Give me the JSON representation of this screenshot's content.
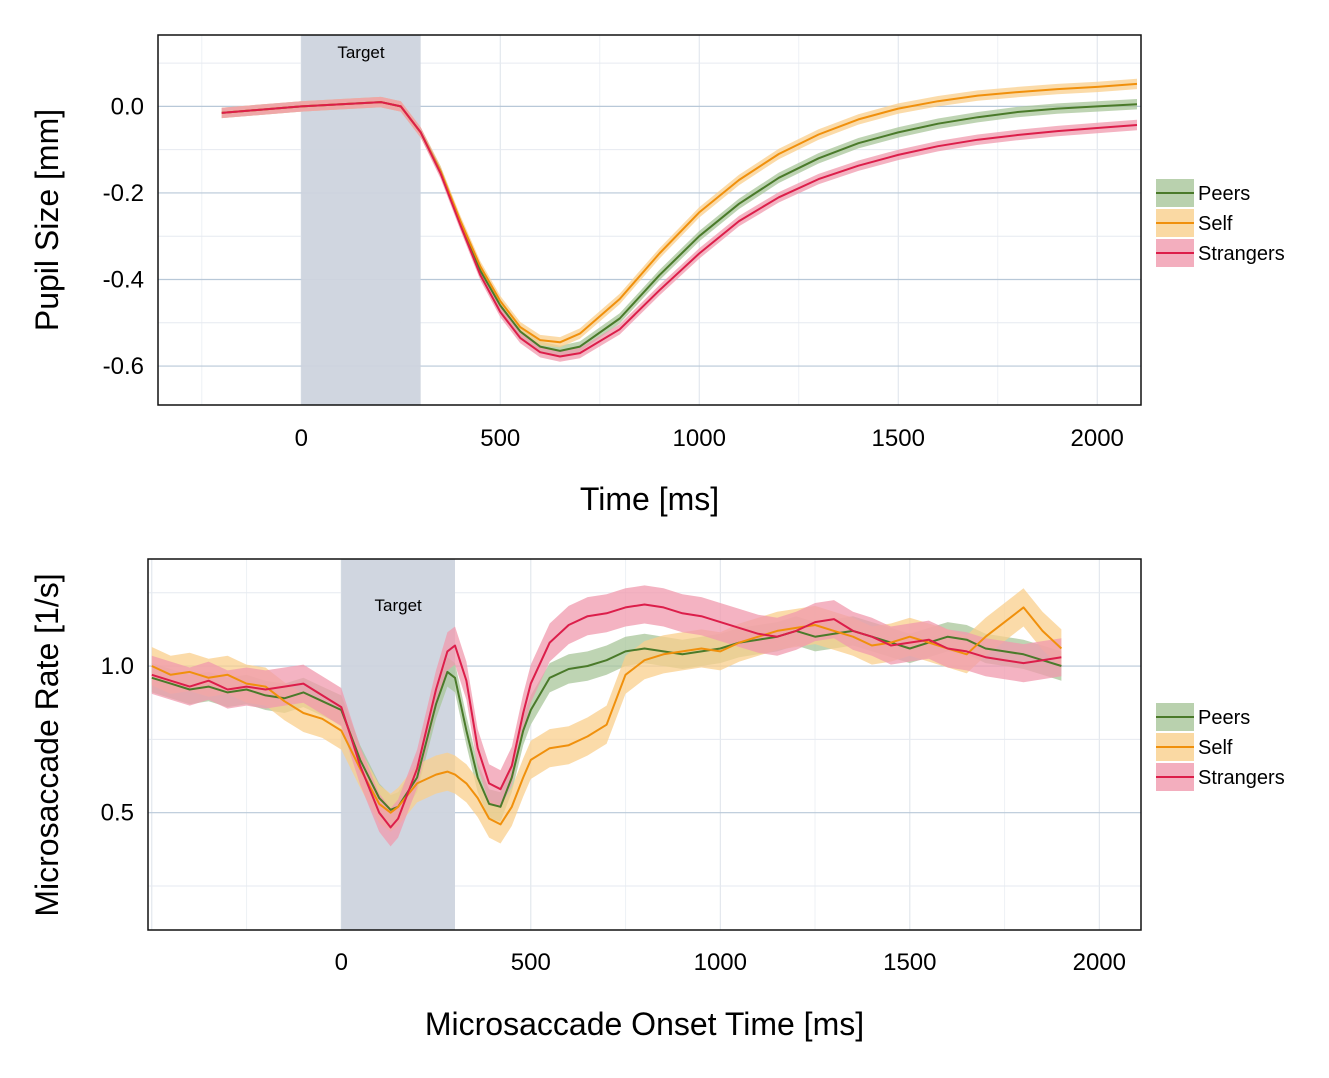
{
  "chart_data": [
    {
      "type": "line",
      "id": "pupil",
      "title": "",
      "xlabel": "Time [ms]",
      "ylabel": "Pupil Size [mm]",
      "xlim": [
        -360,
        2110
      ],
      "ylim": [
        -0.69,
        0.165
      ],
      "xticks": [
        0,
        500,
        1000,
        1500,
        2000
      ],
      "yticks": [
        0.0,
        -0.2,
        -0.4,
        -0.6
      ],
      "ytick_labels": [
        "0.0",
        "-0.2",
        "-0.4",
        "-0.6"
      ],
      "grid": true,
      "legend_position": "right",
      "annotation": {
        "label": "Target",
        "x_start": 0,
        "x_end": 300,
        "color": "#cdd4de"
      },
      "series": [
        {
          "name": "Peers",
          "color": "#4a7a2a",
          "band_color": "#a8c59a",
          "x": [
            -200,
            0,
            100,
            200,
            250,
            300,
            350,
            400,
            450,
            500,
            550,
            600,
            650,
            700,
            800,
            900,
            1000,
            1100,
            1200,
            1300,
            1400,
            1500,
            1600,
            1700,
            1800,
            1900,
            2000,
            2100
          ],
          "y": [
            -0.015,
            0.0,
            0.005,
            0.01,
            0.0,
            -0.06,
            -0.15,
            -0.27,
            -0.38,
            -0.46,
            -0.52,
            -0.555,
            -0.565,
            -0.555,
            -0.49,
            -0.39,
            -0.3,
            -0.225,
            -0.165,
            -0.12,
            -0.085,
            -0.06,
            -0.04,
            -0.025,
            -0.013,
            -0.005,
            0.0,
            0.005
          ],
          "ci": 0.012
        },
        {
          "name": "Self",
          "color": "#f0900c",
          "band_color": "#f9cf8c",
          "x": [
            -200,
            0,
            100,
            200,
            250,
            300,
            350,
            400,
            450,
            500,
            550,
            600,
            650,
            700,
            800,
            900,
            1000,
            1100,
            1200,
            1300,
            1400,
            1500,
            1600,
            1700,
            1800,
            1900,
            2000,
            2100
          ],
          "y": [
            -0.015,
            0.0,
            0.005,
            0.01,
            0.0,
            -0.06,
            -0.15,
            -0.265,
            -0.37,
            -0.45,
            -0.51,
            -0.54,
            -0.545,
            -0.525,
            -0.445,
            -0.34,
            -0.245,
            -0.17,
            -0.11,
            -0.065,
            -0.03,
            -0.005,
            0.012,
            0.025,
            0.033,
            0.04,
            0.045,
            0.052
          ],
          "ci": 0.012
        },
        {
          "name": "Strangers",
          "color": "#dc1e4a",
          "band_color": "#f09aae",
          "x": [
            -200,
            0,
            100,
            200,
            250,
            300,
            350,
            400,
            450,
            500,
            550,
            600,
            650,
            700,
            800,
            900,
            1000,
            1100,
            1200,
            1300,
            1400,
            1500,
            1600,
            1700,
            1800,
            1900,
            2000,
            2100
          ],
          "y": [
            -0.015,
            0.0,
            0.005,
            0.01,
            0.0,
            -0.06,
            -0.155,
            -0.275,
            -0.39,
            -0.475,
            -0.535,
            -0.568,
            -0.578,
            -0.57,
            -0.515,
            -0.425,
            -0.34,
            -0.265,
            -0.21,
            -0.168,
            -0.137,
            -0.112,
            -0.092,
            -0.077,
            -0.066,
            -0.057,
            -0.05,
            -0.043
          ],
          "ci": 0.012
        }
      ]
    },
    {
      "type": "line",
      "id": "microsaccade",
      "title": "",
      "xlabel": "Microsaccade Onset Time [ms]",
      "ylabel": "Microsaccade Rate [1/s]",
      "xlim": [
        -510,
        2110
      ],
      "ylim": [
        0.1,
        1.365
      ],
      "xticks": [
        0,
        500,
        1000,
        1500,
        2000
      ],
      "yticks": [
        0.5,
        1.0
      ],
      "ytick_labels": [
        "0.5",
        "1.0"
      ],
      "grid": true,
      "legend_position": "right",
      "annotation": {
        "label": "Target",
        "x_start": 0,
        "x_end": 300,
        "color": "#cdd4de"
      },
      "series": [
        {
          "name": "Peers",
          "color": "#4a7a2a",
          "band_color": "#a8c59a",
          "x": [
            -500,
            -450,
            -400,
            -350,
            -300,
            -250,
            -200,
            -150,
            -100,
            -50,
            0,
            50,
            100,
            130,
            150,
            200,
            250,
            280,
            300,
            330,
            360,
            390,
            420,
            450,
            480,
            500,
            550,
            600,
            650,
            700,
            750,
            800,
            850,
            900,
            950,
            1000,
            1050,
            1100,
            1150,
            1200,
            1250,
            1300,
            1350,
            1400,
            1450,
            1500,
            1550,
            1600,
            1650,
            1700,
            1750,
            1800,
            1850,
            1900
          ],
          "y": [
            0.96,
            0.94,
            0.92,
            0.93,
            0.91,
            0.92,
            0.9,
            0.89,
            0.91,
            0.88,
            0.85,
            0.68,
            0.55,
            0.51,
            0.52,
            0.62,
            0.87,
            0.98,
            0.96,
            0.78,
            0.62,
            0.53,
            0.52,
            0.62,
            0.78,
            0.85,
            0.96,
            0.99,
            1.0,
            1.02,
            1.05,
            1.06,
            1.05,
            1.04,
            1.05,
            1.06,
            1.08,
            1.09,
            1.1,
            1.12,
            1.1,
            1.11,
            1.12,
            1.1,
            1.08,
            1.06,
            1.08,
            1.1,
            1.09,
            1.06,
            1.05,
            1.04,
            1.02,
            1.0
          ],
          "ci": 0.05
        },
        {
          "name": "Self",
          "color": "#f0900c",
          "band_color": "#f9cf8c",
          "x": [
            -500,
            -450,
            -400,
            -350,
            -300,
            -250,
            -200,
            -150,
            -100,
            -50,
            0,
            50,
            100,
            130,
            150,
            200,
            250,
            280,
            300,
            330,
            360,
            390,
            420,
            450,
            480,
            500,
            550,
            600,
            650,
            700,
            750,
            800,
            850,
            900,
            950,
            1000,
            1050,
            1100,
            1150,
            1200,
            1250,
            1300,
            1350,
            1400,
            1450,
            1500,
            1550,
            1600,
            1650,
            1700,
            1750,
            1800,
            1850,
            1900
          ],
          "y": [
            1.0,
            0.97,
            0.98,
            0.96,
            0.97,
            0.94,
            0.93,
            0.88,
            0.84,
            0.82,
            0.78,
            0.65,
            0.53,
            0.5,
            0.52,
            0.6,
            0.63,
            0.64,
            0.63,
            0.6,
            0.55,
            0.48,
            0.46,
            0.52,
            0.62,
            0.68,
            0.72,
            0.73,
            0.76,
            0.8,
            0.97,
            1.02,
            1.04,
            1.05,
            1.06,
            1.05,
            1.08,
            1.1,
            1.12,
            1.13,
            1.14,
            1.12,
            1.1,
            1.07,
            1.08,
            1.1,
            1.08,
            1.06,
            1.04,
            1.1,
            1.15,
            1.2,
            1.12,
            1.06
          ],
          "ci": 0.065
        },
        {
          "name": "Strangers",
          "color": "#dc1e4a",
          "band_color": "#f09aae",
          "x": [
            -500,
            -450,
            -400,
            -350,
            -300,
            -250,
            -200,
            -150,
            -100,
            -50,
            0,
            50,
            100,
            130,
            150,
            200,
            250,
            280,
            300,
            330,
            360,
            390,
            420,
            450,
            480,
            500,
            550,
            600,
            650,
            700,
            750,
            800,
            850,
            900,
            950,
            1000,
            1050,
            1100,
            1150,
            1200,
            1250,
            1300,
            1350,
            1400,
            1450,
            1500,
            1550,
            1600,
            1650,
            1700,
            1750,
            1800,
            1850,
            1900
          ],
          "y": [
            0.97,
            0.95,
            0.93,
            0.95,
            0.92,
            0.93,
            0.92,
            0.93,
            0.94,
            0.9,
            0.86,
            0.66,
            0.5,
            0.45,
            0.48,
            0.65,
            0.92,
            1.05,
            1.07,
            0.95,
            0.72,
            0.6,
            0.58,
            0.66,
            0.84,
            0.94,
            1.08,
            1.14,
            1.17,
            1.18,
            1.2,
            1.21,
            1.2,
            1.18,
            1.17,
            1.15,
            1.13,
            1.11,
            1.1,
            1.12,
            1.15,
            1.16,
            1.12,
            1.1,
            1.07,
            1.08,
            1.09,
            1.06,
            1.05,
            1.03,
            1.02,
            1.01,
            1.02,
            1.03
          ],
          "ci": 0.065
        }
      ]
    }
  ]
}
